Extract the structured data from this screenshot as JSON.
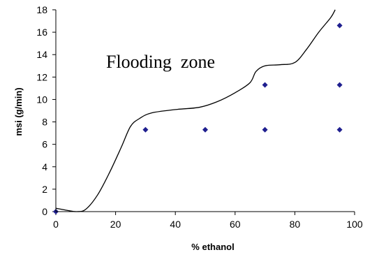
{
  "chart_data": {
    "type": "scatter",
    "title": "",
    "xlabel": "% ethanol",
    "ylabel": "msi (g/min)",
    "xlim": [
      0,
      100
    ],
    "ylim": [
      0,
      18
    ],
    "x_ticks": [
      "0",
      "20",
      "40",
      "60",
      "80",
      "100"
    ],
    "y_ticks": [
      "0",
      "2",
      "4",
      "6",
      "8",
      "10",
      "12",
      "14",
      "16",
      "18"
    ],
    "grid": false,
    "legend": "none",
    "annotations": [
      {
        "text": "Flooding  zone"
      }
    ],
    "series": [
      {
        "kind": "points",
        "marker": "diamond",
        "color": "#1f1f8f",
        "x": [
          0,
          30,
          50,
          70,
          70,
          95,
          95,
          95
        ],
        "y": [
          0,
          7.3,
          7.3,
          7.3,
          11.3,
          7.3,
          11.3,
          16.6
        ]
      },
      {
        "kind": "curve",
        "color": "#000000",
        "x": [
          0,
          4,
          7,
          10,
          14,
          18,
          22,
          25,
          28,
          32,
          40,
          48,
          54,
          60,
          65,
          67,
          70,
          75,
          80,
          84,
          88,
          92,
          93.5
        ],
        "y": [
          0.3,
          0.1,
          0.0,
          0.2,
          1.5,
          3.5,
          5.8,
          7.6,
          8.3,
          8.8,
          9.1,
          9.3,
          9.8,
          10.6,
          11.5,
          12.5,
          13.0,
          13.1,
          13.3,
          14.5,
          16.0,
          17.3,
          18.0
        ]
      }
    ]
  }
}
